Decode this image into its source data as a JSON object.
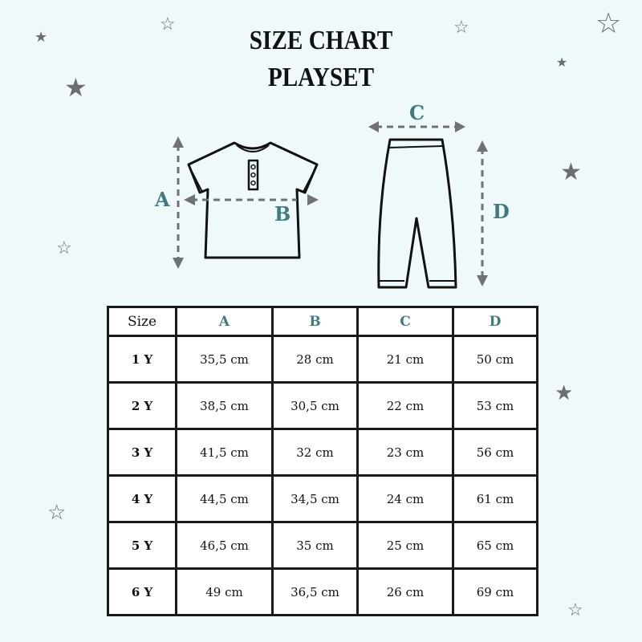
{
  "title": {
    "line1": "SIZE CHART",
    "line2": "PLAYSET"
  },
  "colors": {
    "background": "#eff9fc",
    "accent": "#3f7b80",
    "star": "#6d6d6f"
  },
  "diagram": {
    "shirt_labels": [
      "A",
      "B"
    ],
    "pants_labels": [
      "C",
      "D"
    ]
  },
  "table": {
    "headers": [
      "Size",
      "A",
      "B",
      "C",
      "D"
    ],
    "rows": [
      [
        "1 Y",
        "35,5 cm",
        "28 cm",
        "21 cm",
        "50 cm"
      ],
      [
        "2 Y",
        "38,5 cm",
        "30,5 cm",
        "22 cm",
        "53 cm"
      ],
      [
        "3 Y",
        "41,5 cm",
        "32 cm",
        "23 cm",
        "56 cm"
      ],
      [
        "4 Y",
        "44,5 cm",
        "34,5 cm",
        "24 cm",
        "61 cm"
      ],
      [
        "5 Y",
        "46,5 cm",
        "35 cm",
        "25 cm",
        "65 cm"
      ],
      [
        "6 Y",
        "49 cm",
        "36,5 cm",
        "26 cm",
        "69 cm"
      ]
    ]
  }
}
